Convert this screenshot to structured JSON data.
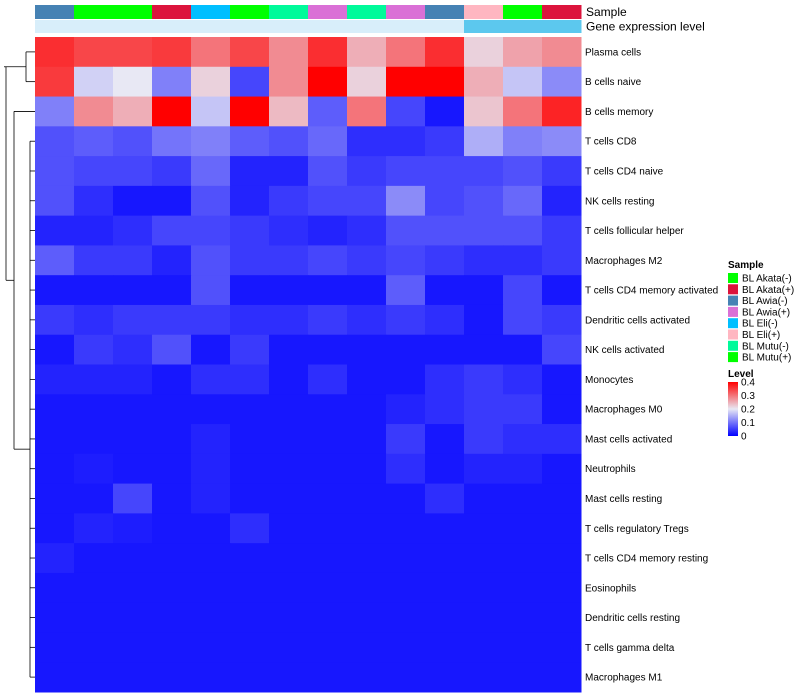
{
  "chart_data": {
    "type": "heatmap",
    "annotation_rows": [
      {
        "label": "Sample",
        "colors": [
          "#4682B4",
          "#00FF00",
          "#00FF00",
          "#DC143C",
          "#00BFFF",
          "#00FF00",
          "#00FA9A",
          "#DA70D6",
          "#00FA9A",
          "#DA70D6",
          "#4682B4",
          "#FFB6C1",
          "#00FF00",
          "#DC143C"
        ]
      },
      {
        "label": "Gene expression level",
        "colors": [
          "#D8EEFA",
          "#D8EEFA",
          "#D8EEFA",
          "#D8EEFA",
          "#D8EEFA",
          "#D8EEFA",
          "#D8EEFA",
          "#D8EEFA",
          "#D8EEFA",
          "#D8EEFA",
          "#D8EEFA",
          "#5CC8EE",
          "#5CC8EE",
          "#5CC8EE"
        ]
      }
    ],
    "rows": [
      "Plasma cells",
      "B cells naive",
      "B cells memory",
      "T cells CD8",
      "T cells CD4 naive",
      "NK cells resting",
      "T cells follicular helper",
      "Macrophages M2",
      "T cells CD4 memory activated",
      "Dendritic cells activated",
      "NK cells activated",
      "Monocytes",
      "Macrophages M0",
      "Mast cells activated",
      "Neutrophils",
      "Mast cells resting",
      "T cells regulatory  Tregs",
      "T cells CD4 memory resting",
      "Eosinophils",
      "Dendritic cells resting",
      "T cells gamma delta",
      "Macrophages M1"
    ],
    "values": [
      [
        0.36,
        0.34,
        0.34,
        0.35,
        0.3,
        0.34,
        0.28,
        0.36,
        0.25,
        0.3,
        0.36,
        0.22,
        0.26,
        0.28
      ],
      [
        0.35,
        0.18,
        0.2,
        0.11,
        0.22,
        0.06,
        0.28,
        0.4,
        0.22,
        0.4,
        0.4,
        0.25,
        0.17,
        0.12
      ],
      [
        0.11,
        0.28,
        0.25,
        0.4,
        0.17,
        0.4,
        0.24,
        0.08,
        0.3,
        0.06,
        0.02,
        0.23,
        0.3,
        0.37
      ],
      [
        0.07,
        0.08,
        0.07,
        0.1,
        0.11,
        0.08,
        0.07,
        0.09,
        0.04,
        0.04,
        0.05,
        0.15,
        0.11,
        0.12
      ],
      [
        0.07,
        0.06,
        0.06,
        0.05,
        0.09,
        0.03,
        0.03,
        0.07,
        0.05,
        0.06,
        0.06,
        0.06,
        0.07,
        0.05
      ],
      [
        0.07,
        0.04,
        0.02,
        0.02,
        0.07,
        0.03,
        0.05,
        0.06,
        0.06,
        0.12,
        0.06,
        0.07,
        0.09,
        0.03
      ],
      [
        0.03,
        0.03,
        0.04,
        0.06,
        0.06,
        0.05,
        0.04,
        0.03,
        0.04,
        0.07,
        0.07,
        0.07,
        0.07,
        0.05
      ],
      [
        0.08,
        0.05,
        0.05,
        0.03,
        0.07,
        0.05,
        0.05,
        0.06,
        0.05,
        0.06,
        0.05,
        0.04,
        0.04,
        0.05
      ],
      [
        0.02,
        0.02,
        0.02,
        0.02,
        0.07,
        0.02,
        0.02,
        0.02,
        0.02,
        0.08,
        0.02,
        0.02,
        0.06,
        0.02
      ],
      [
        0.05,
        0.04,
        0.05,
        0.05,
        0.05,
        0.04,
        0.04,
        0.05,
        0.04,
        0.05,
        0.04,
        0.02,
        0.06,
        0.05
      ],
      [
        0.02,
        0.05,
        0.04,
        0.07,
        0.02,
        0.05,
        0.02,
        0.02,
        0.02,
        0.02,
        0.02,
        0.02,
        0.02,
        0.06
      ],
      [
        0.03,
        0.03,
        0.03,
        0.02,
        0.04,
        0.04,
        0.02,
        0.04,
        0.02,
        0.02,
        0.04,
        0.05,
        0.04,
        0.02
      ],
      [
        0.02,
        0.02,
        0.02,
        0.02,
        0.02,
        0.02,
        0.02,
        0.02,
        0.02,
        0.03,
        0.04,
        0.05,
        0.05,
        0.02
      ],
      [
        0.02,
        0.02,
        0.02,
        0.02,
        0.03,
        0.02,
        0.02,
        0.02,
        0.02,
        0.05,
        0.02,
        0.05,
        0.04,
        0.04
      ],
      [
        0.02,
        0.025,
        0.02,
        0.02,
        0.03,
        0.02,
        0.02,
        0.02,
        0.02,
        0.04,
        0.02,
        0.03,
        0.03,
        0.02
      ],
      [
        0.02,
        0.02,
        0.06,
        0.02,
        0.03,
        0.02,
        0.02,
        0.02,
        0.02,
        0.02,
        0.04,
        0.02,
        0.02,
        0.02
      ],
      [
        0.02,
        0.03,
        0.025,
        0.02,
        0.02,
        0.04,
        0.02,
        0.02,
        0.02,
        0.02,
        0.02,
        0.02,
        0.02,
        0.02
      ],
      [
        0.03,
        0.02,
        0.02,
        0.02,
        0.02,
        0.02,
        0.02,
        0.02,
        0.02,
        0.02,
        0.02,
        0.02,
        0.02,
        0.02
      ],
      [
        0.02,
        0.02,
        0.02,
        0.02,
        0.02,
        0.02,
        0.02,
        0.02,
        0.02,
        0.02,
        0.02,
        0.02,
        0.02,
        0.02
      ],
      [
        0.02,
        0.02,
        0.02,
        0.02,
        0.02,
        0.02,
        0.02,
        0.02,
        0.02,
        0.02,
        0.02,
        0.02,
        0.02,
        0.02
      ],
      [
        0.02,
        0.02,
        0.02,
        0.02,
        0.02,
        0.02,
        0.02,
        0.02,
        0.02,
        0.02,
        0.02,
        0.02,
        0.02,
        0.02
      ],
      [
        0.02,
        0.02,
        0.02,
        0.02,
        0.02,
        0.02,
        0.02,
        0.02,
        0.02,
        0.02,
        0.02,
        0.02,
        0.02,
        0.02
      ]
    ],
    "color_scale": {
      "min": 0,
      "mid": 0.2,
      "max": 0.4,
      "low": "#0000FF",
      "mid_color": "#E8E8F4",
      "high": "#FF0000"
    },
    "legends": {
      "sample": {
        "title": "Sample",
        "items": [
          {
            "label": "BL Akata(-)",
            "color": "#00FF00"
          },
          {
            "label": "BL Akata(+)",
            "color": "#DC143C"
          },
          {
            "label": "BL Awia(-)",
            "color": "#4682B4"
          },
          {
            "label": "BL Awia(+)",
            "color": "#DA70D6"
          },
          {
            "label": "BL Eli(-)",
            "color": "#00BFFF"
          },
          {
            "label": "BL Eli(+)",
            "color": "#FFB6C1"
          },
          {
            "label": "BL Mutu(-)",
            "color": "#00FA9A"
          },
          {
            "label": "BL Mutu(+)",
            "color": "#00FF00"
          }
        ]
      },
      "level": {
        "title": "Level",
        "ticks": [
          "0.4",
          "0.3",
          "0.2",
          "0.1",
          "0"
        ],
        "tick_values": [
          0.4,
          0.3,
          0.2,
          0.1,
          0
        ]
      }
    },
    "row_dendrogram": true,
    "legend_placement": "right"
  }
}
